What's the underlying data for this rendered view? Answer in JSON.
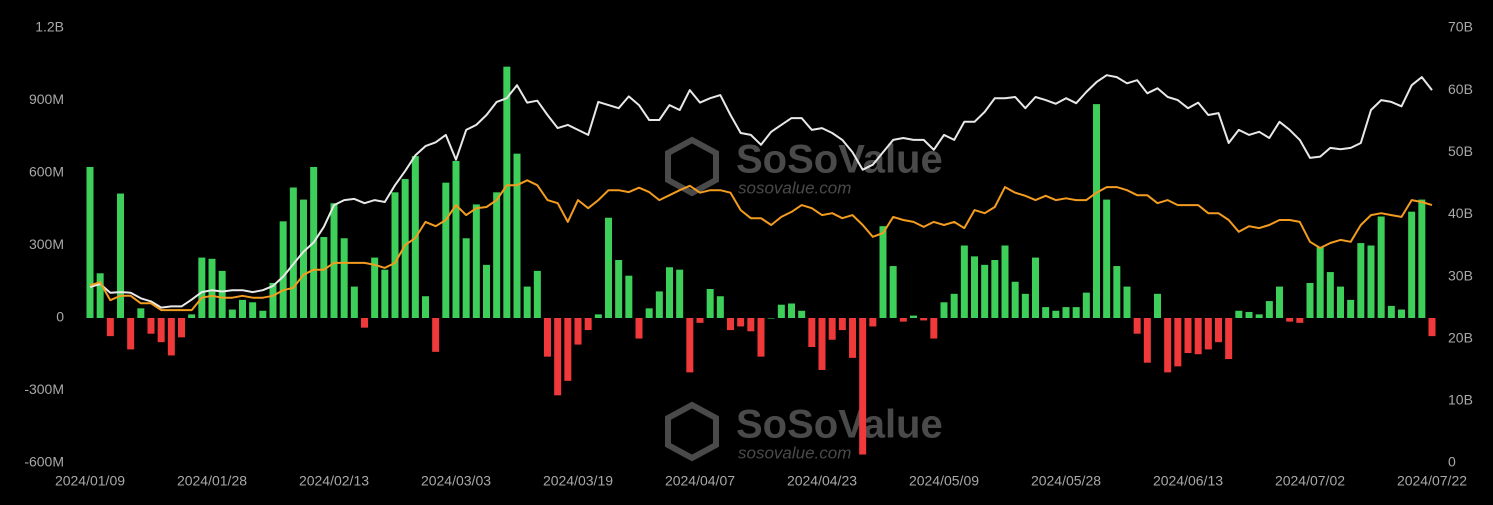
{
  "chart_data": {
    "type": "bar_line",
    "watermark": {
      "brand": "SoSoValue",
      "site": "sosovalue.com"
    },
    "categories": [
      "2024/01/09",
      null,
      null,
      null,
      null,
      null,
      null,
      null,
      null,
      null,
      null,
      null,
      "2024/01/28",
      null,
      null,
      null,
      null,
      null,
      null,
      null,
      null,
      null,
      null,
      null,
      "2024/02/13",
      null,
      null,
      null,
      null,
      null,
      null,
      null,
      null,
      null,
      null,
      null,
      "2024/03/03",
      null,
      null,
      null,
      null,
      null,
      null,
      null,
      null,
      null,
      null,
      null,
      "2024/03/19",
      null,
      null,
      null,
      null,
      null,
      null,
      null,
      null,
      null,
      null,
      null,
      "2024/04/07",
      null,
      null,
      null,
      null,
      null,
      null,
      null,
      null,
      null,
      null,
      null,
      "2024/04/23",
      null,
      null,
      null,
      null,
      null,
      null,
      null,
      null,
      null,
      null,
      null,
      "2024/05/09",
      null,
      null,
      null,
      null,
      null,
      null,
      null,
      null,
      null,
      null,
      null,
      "2024/05/28",
      null,
      null,
      null,
      null,
      null,
      null,
      null,
      null,
      null,
      null,
      null,
      "2024/06/13",
      null,
      null,
      null,
      null,
      null,
      null,
      null,
      null,
      null,
      null,
      null,
      "2024/07/02",
      null,
      null,
      null,
      null,
      null,
      null,
      null,
      null,
      null,
      null,
      null,
      "2024/07/22"
    ],
    "bars": {
      "positive_color": "#3ecf5a",
      "negative_color": "#f0393a",
      "values": [
        625,
        185,
        -75,
        515,
        -130,
        40,
        -65,
        -100,
        -155,
        -80,
        15,
        250,
        245,
        195,
        35,
        75,
        65,
        30,
        145,
        400,
        540,
        490,
        625,
        335,
        475,
        330,
        130,
        -40,
        250,
        200,
        520,
        575,
        670,
        90,
        -140,
        560,
        650,
        330,
        470,
        220,
        520,
        1040,
        680,
        130,
        195,
        -160,
        -320,
        -260,
        -110,
        -50,
        15,
        415,
        240,
        175,
        -85,
        40,
        110,
        210,
        200,
        -225,
        -20,
        120,
        90,
        -50,
        -35,
        -55,
        -160,
        0,
        55,
        60,
        30,
        -120,
        -215,
        -90,
        -50,
        -165,
        -565,
        -35,
        380,
        215,
        -15,
        10,
        -10,
        -85,
        65,
        100,
        300,
        255,
        220,
        240,
        300,
        150,
        100,
        250,
        45,
        30,
        45,
        45,
        105,
        885,
        490,
        215,
        130,
        -65,
        -185,
        100,
        -225,
        -200,
        -145,
        -150,
        -130,
        -100,
        -170,
        30,
        25,
        15,
        70,
        130,
        -15,
        -20,
        145,
        295,
        190,
        130,
        75,
        310,
        300,
        420,
        50,
        35,
        440,
        490,
        -75
      ]
    },
    "series": [
      {
        "color": "#e8e8e8",
        "axis": "y2",
        "values": [
          28.3,
          28.8,
          27.4,
          27.5,
          27.4,
          26.5,
          26.0,
          25.0,
          25.2,
          25.2,
          26.3,
          27.5,
          27.8,
          27.6,
          27.8,
          27.8,
          27.5,
          27.8,
          28.5,
          30.0,
          32,
          34,
          35.5,
          38,
          41.5,
          42.3,
          42.5,
          41.8,
          42.3,
          42,
          44.7,
          47,
          49.5,
          51,
          51.6,
          52.8,
          48.8,
          53.6,
          54.4,
          56,
          58.1,
          58.7,
          60.8,
          58,
          58.3,
          56,
          53.9,
          54.4,
          53.6,
          52.8,
          58.1,
          57.6,
          57.1,
          59,
          57.6,
          55.2,
          55.2,
          57.6,
          56.8,
          60,
          58,
          58.7,
          59.2,
          56,
          53.1,
          52.8,
          51.2,
          53.3,
          54.4,
          55.5,
          55.5,
          53.6,
          53.9,
          53.1,
          52,
          50,
          47.2,
          48,
          50,
          52,
          52.3,
          52,
          52,
          50.4,
          52.8,
          52,
          54.9,
          54.9,
          56.5,
          58.7,
          58.7,
          58.9,
          57.1,
          58.9,
          58.4,
          57.8,
          58.7,
          57.9,
          59.7,
          61.3,
          62.4,
          62.1,
          61.1,
          61.6,
          59.5,
          60.3,
          58.9,
          58.4,
          57.1,
          58,
          56,
          56.3,
          51.5,
          53.6,
          52.8,
          53.3,
          52.3,
          54.9,
          53.6,
          52,
          49.1,
          49.3,
          50.7,
          50.5,
          50.7,
          51.5,
          56.8,
          58.4,
          58.1,
          57.4,
          60.8,
          62.1,
          60
        ]
      },
      {
        "color": "#f39c1f",
        "axis": "y2",
        "values": [
          28.6,
          29.1,
          26.2,
          26.9,
          26.9,
          25.7,
          25.7,
          24.6,
          24.6,
          24.6,
          24.6,
          26.6,
          26.9,
          26.6,
          26.6,
          26.9,
          26.6,
          26.6,
          26.9,
          27.8,
          28.2,
          30.3,
          31.1,
          31.1,
          32.2,
          32.2,
          32.2,
          32.2,
          31.9,
          31.4,
          32.2,
          35.1,
          36.2,
          38.8,
          38.1,
          39.1,
          41.5,
          39.9,
          41.0,
          41.2,
          42.3,
          44.7,
          44.7,
          45.5,
          44.7,
          42.3,
          41.8,
          38.8,
          42.3,
          41.0,
          42.3,
          43.9,
          43.9,
          43.6,
          44.3,
          43.6,
          42.3,
          43.1,
          43.9,
          44.6,
          43.5,
          43.9,
          43.9,
          43.5,
          40.7,
          39.4,
          39.4,
          38.3,
          39.6,
          40.4,
          41.5,
          41.0,
          39.9,
          40.2,
          39.4,
          39.9,
          38.3,
          36.4,
          37.0,
          39.6,
          39.1,
          38.8,
          38.0,
          38.8,
          38.3,
          38.8,
          37.8,
          40.7,
          40.2,
          41.2,
          44.4,
          43.5,
          43.0,
          42.3,
          43.0,
          42.3,
          42.6,
          42.3,
          42.3,
          43.5,
          44.4,
          44.4,
          43.9,
          43.1,
          43.1,
          41.8,
          42.3,
          41.5,
          41.5,
          41.5,
          40.2,
          40.2,
          39.1,
          37.2,
          38.1,
          37.8,
          38.3,
          39.1,
          39.1,
          38.8,
          35.6,
          34.6,
          35.4,
          35.9,
          35.6,
          38.3,
          39.9,
          40.2,
          39.9,
          39.6,
          42.3,
          42.0,
          41.5
        ]
      }
    ],
    "ylim": [
      -600,
      1200
    ],
    "yticks": [
      {
        "value": -600,
        "label": "-600M"
      },
      {
        "value": -300,
        "label": "-300M"
      },
      0,
      {
        "value": 300,
        "label": "300M"
      },
      {
        "value": 600,
        "label": "600M"
      },
      {
        "value": 900,
        "label": "900M"
      },
      {
        "value": 1200,
        "label": "1.2B"
      }
    ],
    "y2lim": [
      0,
      70
    ],
    "y2ticks": [
      0,
      {
        "value": 10,
        "label": "10B"
      },
      {
        "value": 20,
        "label": "20B"
      },
      {
        "value": 30,
        "label": "30B"
      },
      {
        "value": 40,
        "label": "40B"
      },
      {
        "value": 50,
        "label": "50B"
      },
      {
        "value": 60,
        "label": "60B"
      },
      {
        "value": 70,
        "label": "70B"
      }
    ],
    "grid": false
  }
}
